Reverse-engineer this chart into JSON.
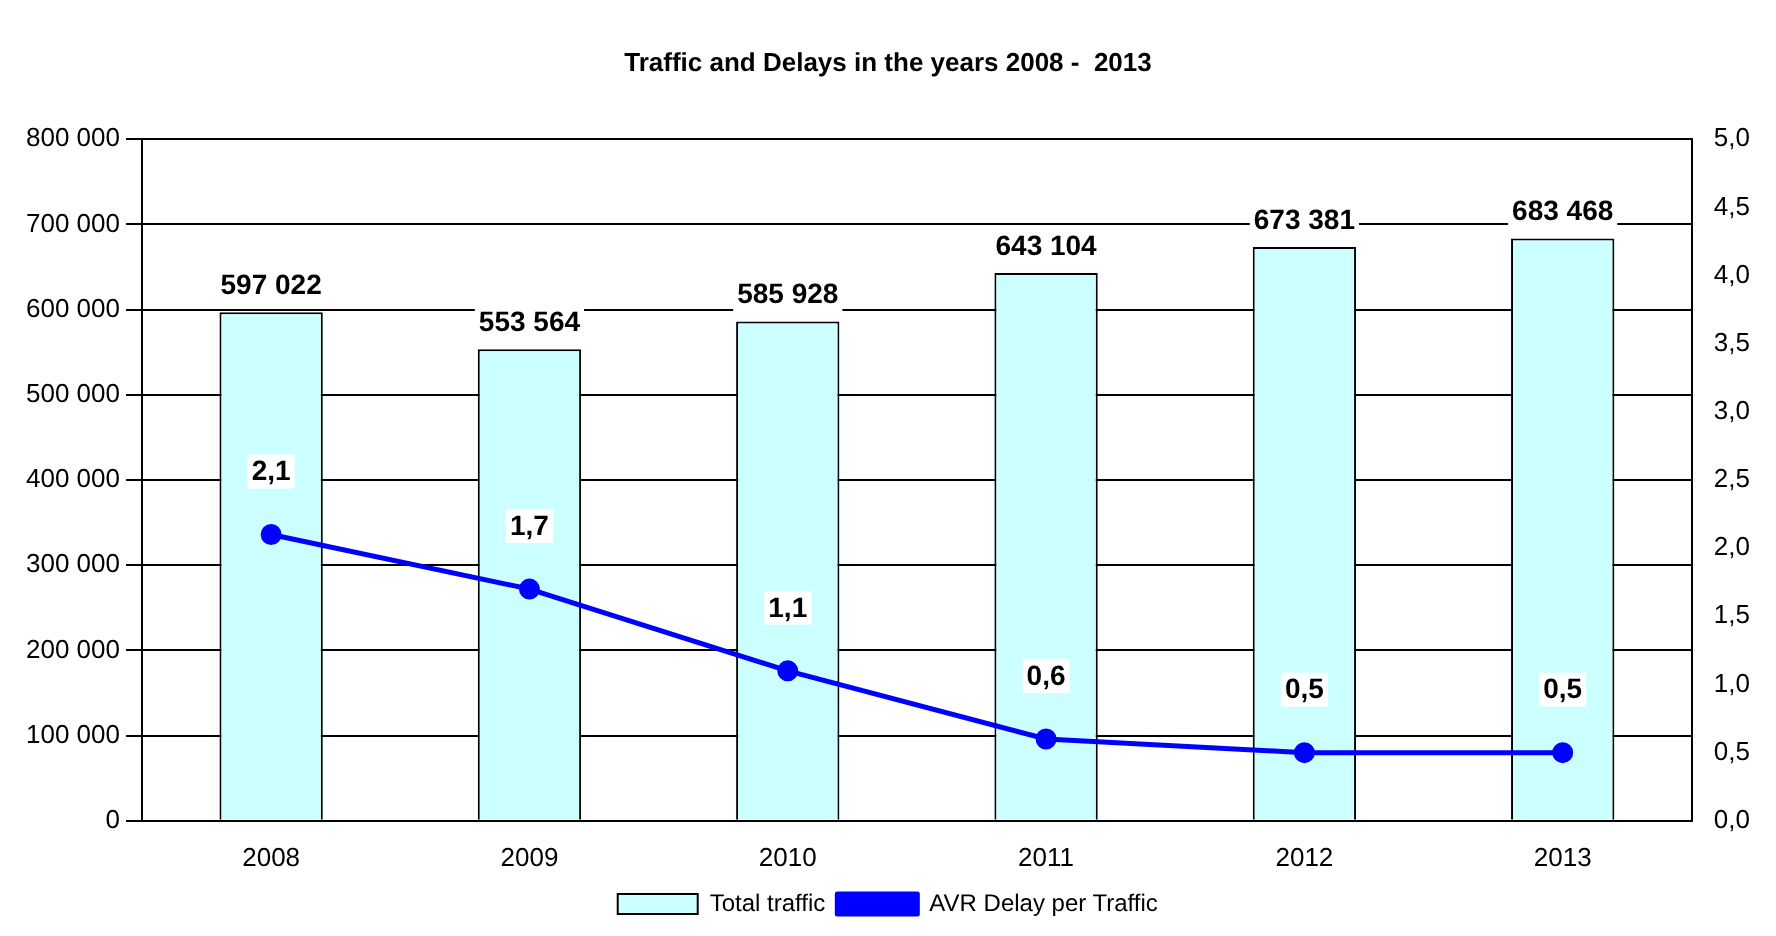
{
  "chart_data": {
    "type": "bar",
    "title": "Traffic and Delays in the years 2008 -  2013",
    "categories": [
      "2008",
      "2009",
      "2010",
      "2011",
      "2012",
      "2013"
    ],
    "series": [
      {
        "name": "Total traffic",
        "color": "#ccffff",
        "values": [
          597022,
          553564,
          585928,
          643104,
          673381,
          683468
        ],
        "value_labels": [
          "597 022",
          "553 564",
          "585 928",
          "643 104",
          "673 381",
          "683 468"
        ]
      },
      {
        "name": "AVR Delay per Traffic",
        "type": "line",
        "axis": "y2",
        "color": "#0000ff",
        "marker": "circle",
        "values": [
          2.1,
          1.7,
          1.1,
          0.6,
          0.5,
          0.5
        ],
        "value_labels": [
          "2,1",
          "1,7",
          "1,1",
          "0,6",
          "0,5",
          "0,5"
        ]
      }
    ],
    "ylim": [
      0,
      800000
    ],
    "yticks": [
      {
        "value": 0,
        "label": "0"
      },
      {
        "value": 100000,
        "label": "100 000"
      },
      {
        "value": 200000,
        "label": "200 000"
      },
      {
        "value": 300000,
        "label": "300 000"
      },
      {
        "value": 400000,
        "label": "400 000"
      },
      {
        "value": 500000,
        "label": "500 000"
      },
      {
        "value": 600000,
        "label": "600 000"
      },
      {
        "value": 700000,
        "label": "700 000"
      },
      {
        "value": 800000,
        "label": "800 000"
      }
    ],
    "y2lim": [
      0,
      5
    ],
    "y2ticks": [
      {
        "value": 0,
        "label": "0,0"
      },
      {
        "value": 0.5,
        "label": "0,5"
      },
      {
        "value": 1,
        "label": "1,0"
      },
      {
        "value": 1.5,
        "label": "1,5"
      },
      {
        "value": 2,
        "label": "2,0"
      },
      {
        "value": 2.5,
        "label": "2,5"
      },
      {
        "value": 3,
        "label": "3,0"
      },
      {
        "value": 3.5,
        "label": "3,5"
      },
      {
        "value": 4,
        "label": "4,0"
      },
      {
        "value": 4.5,
        "label": "4,5"
      },
      {
        "value": 5,
        "label": "5,0"
      }
    ],
    "grid": "y",
    "legend": "bottom"
  }
}
